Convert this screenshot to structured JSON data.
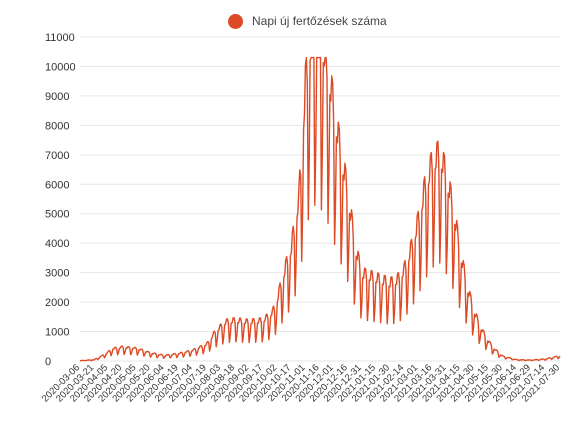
{
  "chart_data": {
    "type": "line",
    "title": "",
    "xlabel": "",
    "ylabel": "",
    "ylim": [
      0,
      11000
    ],
    "grid": true,
    "legend_position": "top",
    "series": [
      {
        "name": "Napi új fertőzések száma",
        "color": "#dc4b25"
      }
    ],
    "y_ticks": [
      "0",
      "1000",
      "2000",
      "3000",
      "4000",
      "5000",
      "6000",
      "7000",
      "8000",
      "9000",
      "10000",
      "11000"
    ],
    "x_tick_labels": [
      "2020-03-06",
      "2020-03-21",
      "2020-04-05",
      "2020-04-20",
      "2020-05-05",
      "2020-05-20",
      "2020-06-04",
      "2020-06-19",
      "2020-07-04",
      "2020-07-19",
      "2020-08-03",
      "2020-08-18",
      "2020-09-02",
      "2020-09-17",
      "2020-10-02",
      "2020-10-17",
      "2020-11-01",
      "2020-11-16",
      "2020-12-01",
      "2020-12-16",
      "2020-12-31",
      "2021-01-15",
      "2021-01-30",
      "2021-02-14",
      "2021-03-01",
      "2021-03-16",
      "2021-03-31",
      "2021-04-15",
      "2021-04-30",
      "2021-05-15",
      "2021-05-30",
      "2021-06-14",
      "2021-06-29",
      "2021-07-14",
      "2021-07-30"
    ],
    "points": [
      [
        "2020-03-06",
        10
      ],
      [
        "2020-03-21",
        40
      ],
      [
        "2020-04-01",
        200
      ],
      [
        "2020-04-10",
        380
      ],
      [
        "2020-04-20",
        430
      ],
      [
        "2020-05-05",
        390
      ],
      [
        "2020-05-20",
        250
      ],
      [
        "2020-06-04",
        170
      ],
      [
        "2020-06-19",
        230
      ],
      [
        "2020-07-04",
        330
      ],
      [
        "2020-07-19",
        520
      ],
      [
        "2020-07-28",
        900
      ],
      [
        "2020-08-08",
        1200
      ],
      [
        "2020-08-18",
        1250
      ],
      [
        "2020-09-02",
        1200
      ],
      [
        "2020-09-17",
        1250
      ],
      [
        "2020-09-27",
        1500
      ],
      [
        "2020-10-02",
        1900
      ],
      [
        "2020-10-09",
        2700
      ],
      [
        "2020-10-17",
        3500
      ],
      [
        "2020-10-25",
        5000
      ],
      [
        "2020-11-01",
        8500
      ],
      [
        "2020-11-08",
        10200
      ],
      [
        "2020-11-16",
        10100
      ],
      [
        "2020-11-24",
        9200
      ],
      [
        "2020-12-01",
        7800
      ],
      [
        "2020-12-08",
        6500
      ],
      [
        "2020-12-16",
        5200
      ],
      [
        "2020-12-24",
        3500
      ],
      [
        "2020-12-31",
        2700
      ],
      [
        "2021-01-10",
        2600
      ],
      [
        "2021-01-20",
        2500
      ],
      [
        "2021-01-30",
        2400
      ],
      [
        "2021-02-07",
        2500
      ],
      [
        "2021-02-14",
        2800
      ],
      [
        "2021-02-22",
        3500
      ],
      [
        "2021-03-01",
        4300
      ],
      [
        "2021-03-08",
        5300
      ],
      [
        "2021-03-16",
        6100
      ],
      [
        "2021-03-24",
        6400
      ],
      [
        "2021-03-31",
        5700
      ],
      [
        "2021-04-08",
        4600
      ],
      [
        "2021-04-15",
        3300
      ],
      [
        "2021-04-23",
        2200
      ],
      [
        "2021-04-30",
        1500
      ],
      [
        "2021-05-07",
        1000
      ],
      [
        "2021-05-15",
        600
      ],
      [
        "2021-05-22",
        350
      ],
      [
        "2021-05-30",
        150
      ],
      [
        "2021-06-14",
        40
      ],
      [
        "2021-06-29",
        30
      ],
      [
        "2021-07-14",
        60
      ],
      [
        "2021-07-30",
        160
      ]
    ]
  }
}
